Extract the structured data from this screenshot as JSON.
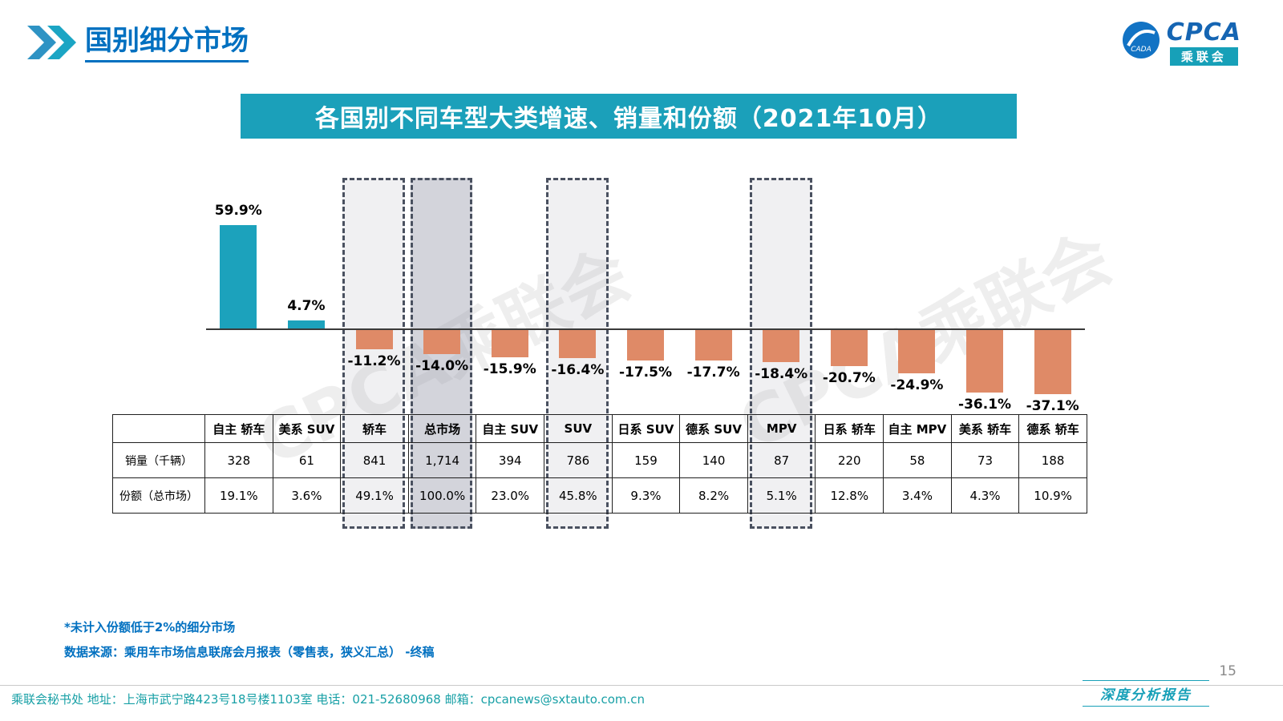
{
  "page": {
    "title": "国别细分市场",
    "page_number": "15",
    "report_tag": "深度分析报告"
  },
  "logo": {
    "wordmark": "CPCA",
    "sub_label": "乘联会",
    "emblem_text": "CADA"
  },
  "banner": {
    "title": "各国别不同车型大类增速、销量和份额（2021年10月）"
  },
  "watermark": "CPCA乘联会",
  "chart_data": {
    "type": "bar",
    "title": "各国别不同车型大类增速、销量和份额（2021年10月）",
    "categories": [
      "自主 轿车",
      "美系 SUV",
      "轿车",
      "总市场",
      "自主 SUV",
      "SUV",
      "日系 SUV",
      "德系 SUV",
      "MPV",
      "日系 轿车",
      "自主 MPV",
      "美系 轿车",
      "德系 轿车"
    ],
    "growth_pct": [
      59.9,
      4.7,
      -11.2,
      -14.0,
      -15.9,
      -16.4,
      -17.5,
      -17.7,
      -18.4,
      -20.7,
      -24.9,
      -36.1,
      -37.1
    ],
    "sales_thousand": [
      "328",
      "61",
      "841",
      "1,714",
      "394",
      "786",
      "159",
      "140",
      "87",
      "220",
      "58",
      "73",
      "188"
    ],
    "share_pct": [
      "19.1%",
      "3.6%",
      "49.1%",
      "100.0%",
      "23.0%",
      "45.8%",
      "9.3%",
      "8.2%",
      "5.1%",
      "12.8%",
      "3.4%",
      "4.3%",
      "10.9%"
    ],
    "row_labels": {
      "sales": "销量（千辆）",
      "share": "份额（总市场）"
    },
    "highlighted_columns": [
      2,
      3,
      5,
      8
    ],
    "highlight_strong": 3,
    "colors": {
      "positive": "#1CA2BC",
      "negative": "#DF8A67"
    },
    "ylim": [
      -40,
      65
    ],
    "grid": false,
    "legend": "none"
  },
  "footnotes": {
    "note1": "*未计入份额低于2%的细分市场",
    "note2": "数据来源：乘用车市场信息联席会月报表（零售表，狭义汇总） -终稿"
  },
  "footer": {
    "contact": "乘联会秘书处   地址：上海市武宁路423号18号楼1103室  电话：021-52680968   邮箱：cpcanews@sxtauto.com.cn"
  }
}
